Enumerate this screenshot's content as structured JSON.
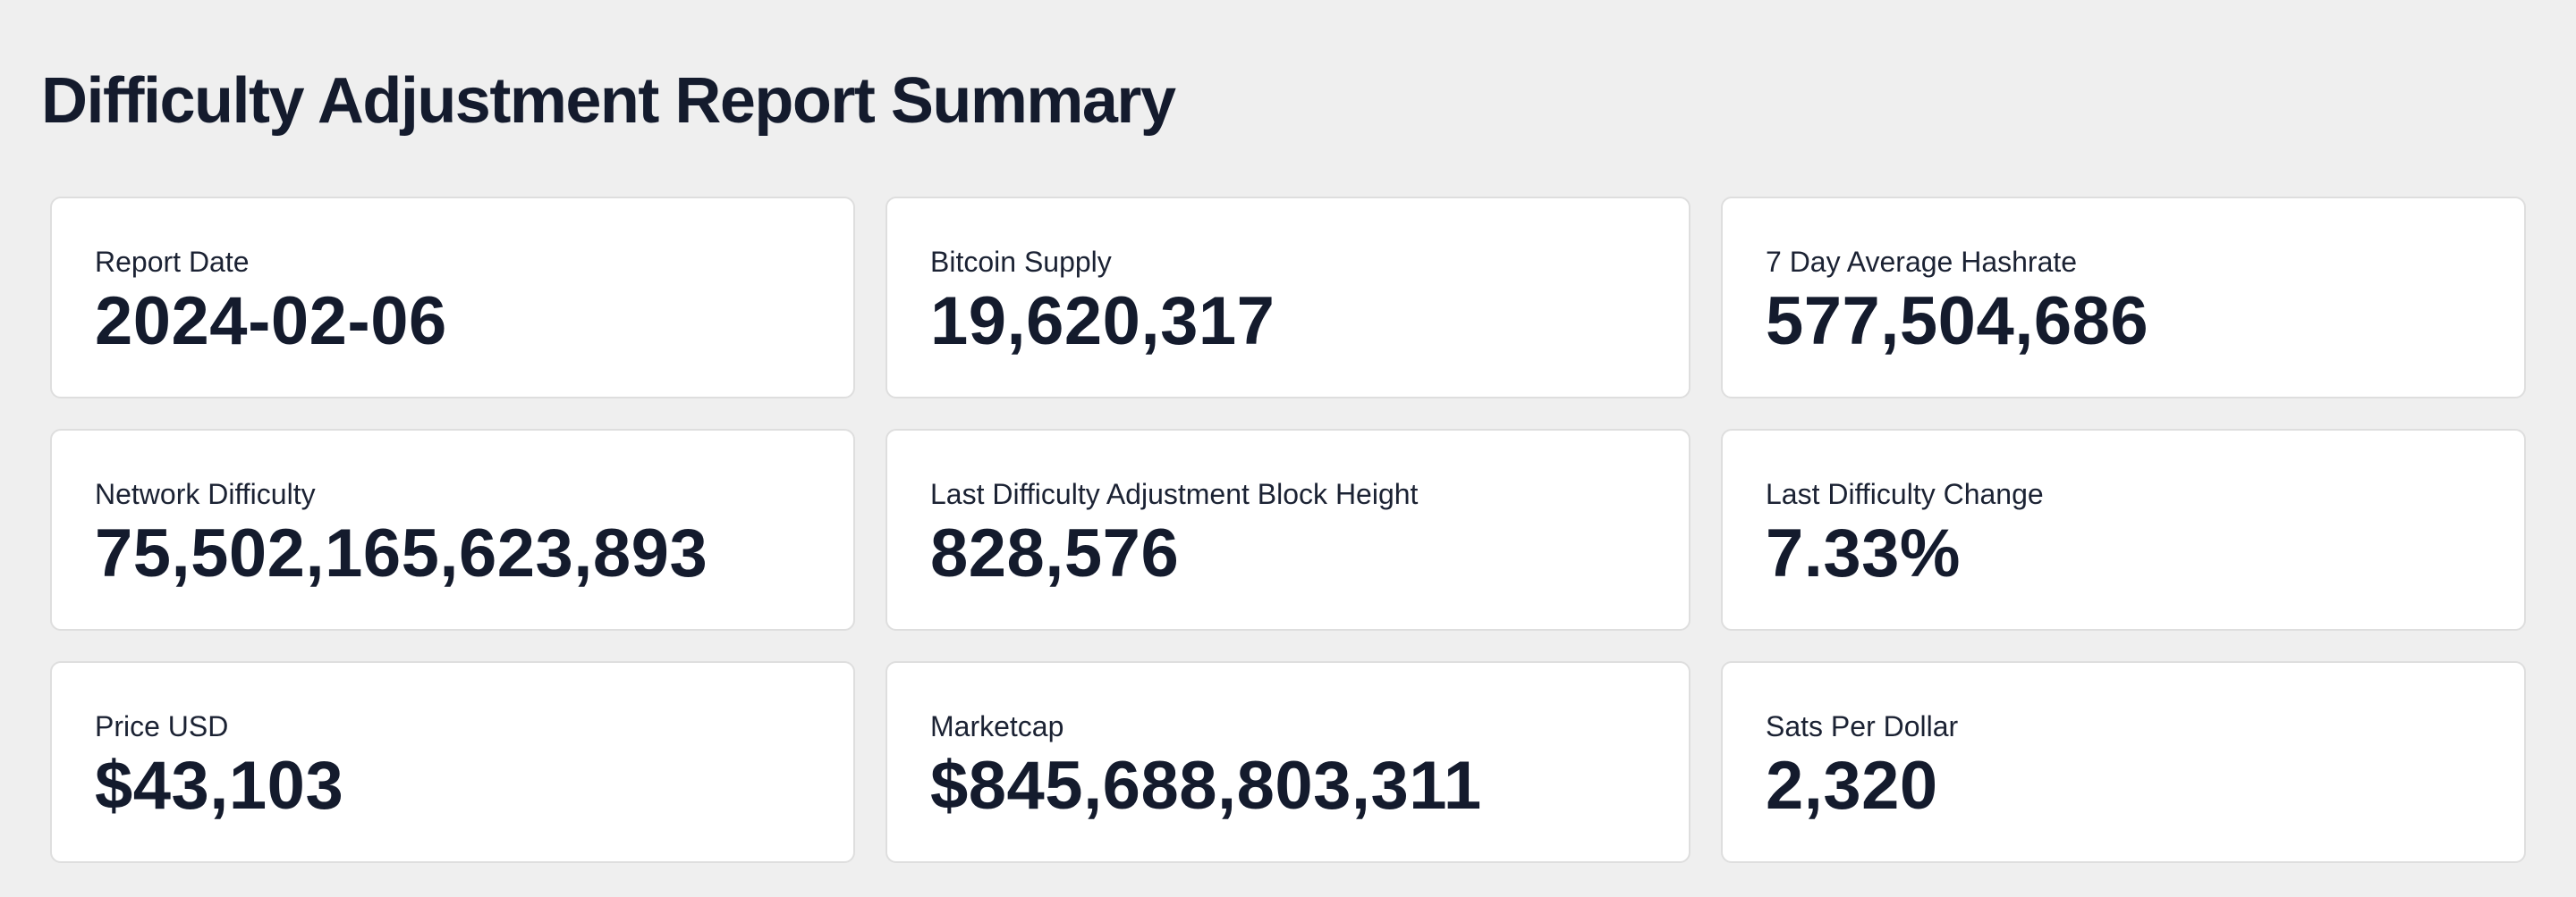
{
  "page": {
    "title": "Difficulty Adjustment Report Summary"
  },
  "cards": [
    {
      "label": "Report Date",
      "value": "2024-02-06"
    },
    {
      "label": "Bitcoin Supply",
      "value": "19,620,317"
    },
    {
      "label": "7 Day Average Hashrate",
      "value": "577,504,686"
    },
    {
      "label": "Network Difficulty",
      "value": "75,502,165,623,893"
    },
    {
      "label": "Last Difficulty Adjustment Block Height",
      "value": "828,576"
    },
    {
      "label": "Last Difficulty Change",
      "value": "7.33%"
    },
    {
      "label": "Price USD",
      "value": "$43,103"
    },
    {
      "label": "Marketcap",
      "value": "$845,688,803,311"
    },
    {
      "label": "Sats Per Dollar",
      "value": "2,320"
    }
  ]
}
